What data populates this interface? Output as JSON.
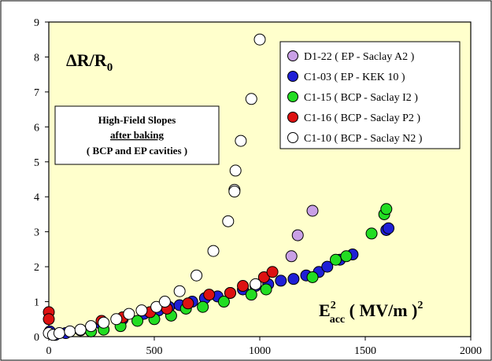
{
  "chart_data": {
    "type": "scatter",
    "title": "",
    "xlabel": "E²acc ( MV/m )²",
    "ylabel": "ΔR/R0",
    "xlim": [
      0,
      2000
    ],
    "ylim": [
      0,
      9
    ],
    "x_ticks": [
      "0",
      "500",
      "1000",
      "1500",
      "2000"
    ],
    "y_ticks": [
      "0",
      "1",
      "2",
      "3",
      "4",
      "5",
      "6",
      "7",
      "8",
      "9"
    ],
    "grid": false,
    "legend_position": "top-right",
    "background_color": "#ffffcc",
    "annotation": {
      "line1": "High-Field Slopes",
      "line2": "after baking",
      "line3": "( BCP and EP cavities )"
    },
    "axis_label_main": {
      "y_delta": "ΔR/R",
      "y_sub": "0",
      "x_E": "E",
      "x_sup": "2",
      "x_sub": "acc",
      "x_units": " ( MV/m )",
      "x_units_sup": "2"
    },
    "series": [
      {
        "name": "D1-22  ( EP - Saclay A2 )",
        "color": "#c9a0e6",
        "points": [
          [
            1150,
            2.3
          ],
          [
            1180,
            2.9
          ],
          [
            1250,
            3.6
          ]
        ]
      },
      {
        "name": "C1-03  ( EP - KEK 10 )",
        "color": "#1f1fd6",
        "points": [
          [
            5,
            0.15
          ],
          [
            30,
            0.05
          ],
          [
            80,
            0.1
          ],
          [
            150,
            0.18
          ],
          [
            250,
            0.35
          ],
          [
            350,
            0.5
          ],
          [
            450,
            0.65
          ],
          [
            520,
            0.75
          ],
          [
            570,
            0.85
          ],
          [
            620,
            0.9
          ],
          [
            680,
            1.0
          ],
          [
            740,
            1.1
          ],
          [
            800,
            1.15
          ],
          [
            860,
            1.25
          ],
          [
            920,
            1.35
          ],
          [
            980,
            1.45
          ],
          [
            1040,
            1.5
          ],
          [
            1100,
            1.6
          ],
          [
            1160,
            1.65
          ],
          [
            1220,
            1.75
          ],
          [
            1280,
            1.85
          ],
          [
            1320,
            2.0
          ],
          [
            1380,
            2.2
          ],
          [
            1440,
            2.35
          ],
          [
            1600,
            3.05
          ],
          [
            1610,
            3.1
          ]
        ]
      },
      {
        "name": "C1-15  ( BCP - Saclay I2 )",
        "color": "#22dd22",
        "points": [
          [
            200,
            0.15
          ],
          [
            260,
            0.2
          ],
          [
            340,
            0.3
          ],
          [
            420,
            0.45
          ],
          [
            500,
            0.5
          ],
          [
            580,
            0.6
          ],
          [
            650,
            0.8
          ],
          [
            730,
            0.85
          ],
          [
            830,
            1.0
          ],
          [
            960,
            1.2
          ],
          [
            1030,
            1.35
          ],
          [
            1250,
            1.7
          ],
          [
            1360,
            2.2
          ],
          [
            1410,
            2.3
          ],
          [
            1530,
            2.95
          ],
          [
            1590,
            3.5
          ],
          [
            1600,
            3.65
          ]
        ]
      },
      {
        "name": "C1-16  ( BCP - Saclay P2 )",
        "color": "#dd1111",
        "points": [
          [
            0,
            0.7
          ],
          [
            0,
            0.5
          ],
          [
            250,
            0.45
          ],
          [
            350,
            0.55
          ],
          [
            480,
            0.7
          ],
          [
            560,
            0.8
          ],
          [
            660,
            0.95
          ],
          [
            760,
            1.2
          ],
          [
            860,
            1.25
          ],
          [
            920,
            1.45
          ],
          [
            1020,
            1.7
          ],
          [
            1060,
            1.85
          ]
        ]
      },
      {
        "name": "C1-10  ( BCP - Saclay N2 )",
        "color": "#ffffff",
        "points": [
          [
            0,
            0.1
          ],
          [
            20,
            0.05
          ],
          [
            50,
            0.1
          ],
          [
            100,
            0.15
          ],
          [
            150,
            0.2
          ],
          [
            200,
            0.3
          ],
          [
            260,
            0.4
          ],
          [
            320,
            0.5
          ],
          [
            380,
            0.65
          ],
          [
            440,
            0.75
          ],
          [
            510,
            0.85
          ],
          [
            550,
            1.0
          ],
          [
            620,
            1.3
          ],
          [
            700,
            1.75
          ],
          [
            780,
            2.45
          ],
          [
            850,
            3.3
          ],
          [
            880,
            4.2
          ],
          [
            880,
            4.15
          ],
          [
            885,
            4.75
          ],
          [
            910,
            5.6
          ],
          [
            960,
            6.8
          ],
          [
            1000,
            8.5
          ],
          [
            980,
            1.5
          ]
        ]
      }
    ]
  }
}
